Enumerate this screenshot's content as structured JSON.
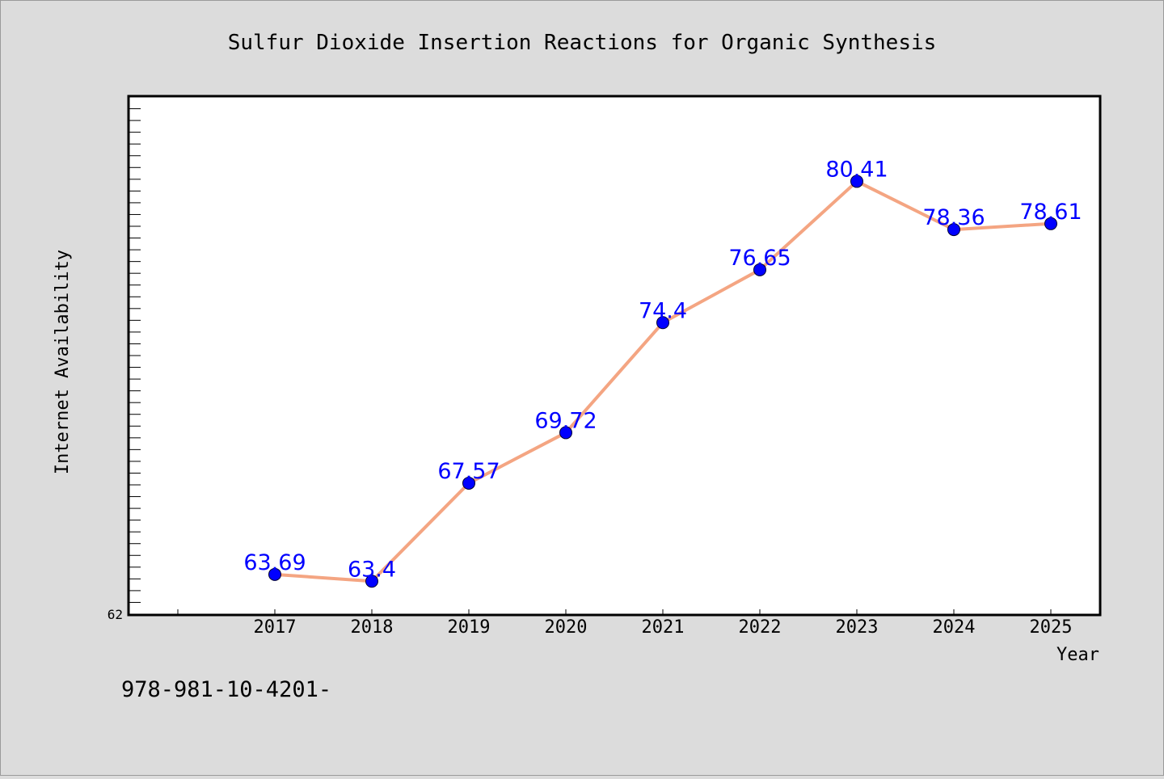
{
  "chart_data": {
    "type": "line",
    "title": "Sulfur Dioxide Insertion Reactions for Organic Synthesis",
    "xlabel": "Year",
    "ylabel": "Internet Availability",
    "categories": [
      "2017",
      "2018",
      "2019",
      "2020",
      "2021",
      "2022",
      "2023",
      "2024",
      "2025"
    ],
    "series": [
      {
        "values": [
          63.69,
          63.4,
          67.57,
          69.72,
          74.4,
          76.65,
          80.41,
          78.36,
          78.61
        ],
        "data_labels": [
          "63.69",
          "63.4",
          "67.57",
          "69.72",
          "74.4",
          "76.65",
          "80.41",
          "78.36",
          "78.61"
        ]
      }
    ],
    "ylim": [
      62,
      84
    ],
    "y_tick_labels": [
      "62"
    ],
    "grid": false,
    "legend": "none",
    "colors": {
      "line": "#f4a582",
      "marker": "#0000ff",
      "data_label": "#0000ff",
      "background": "#dcdcdc",
      "plot_background": "#ffffff"
    }
  },
  "footer_text": "978-981-10-4201-"
}
